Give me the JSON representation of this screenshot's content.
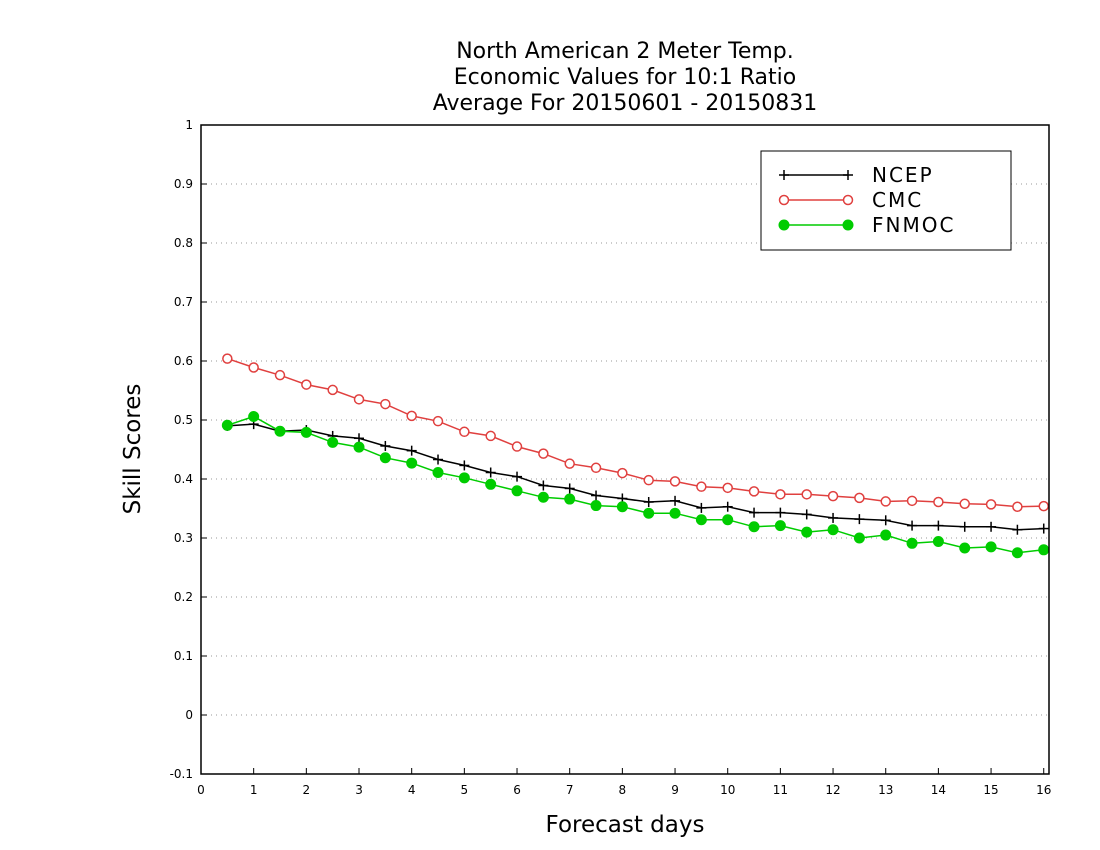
{
  "chart_data": {
    "type": "line",
    "title_lines": [
      "North American 2 Meter Temp.",
      "Economic Values for 10:1 Ratio",
      "Average For 20150601 - 20150831"
    ],
    "xlabel": "Forecast days",
    "ylabel": "Skill Scores",
    "xlim": [
      0,
      16.1
    ],
    "ylim": [
      -0.1,
      1
    ],
    "x_ticks": [
      0,
      1,
      2,
      3,
      4,
      5,
      6,
      7,
      8,
      9,
      10,
      11,
      12,
      13,
      14,
      15,
      16
    ],
    "y_ticks": [
      -0.1,
      0,
      0.1,
      0.2,
      0.3,
      0.4,
      0.5,
      0.6,
      0.7,
      0.8,
      0.9,
      1
    ],
    "y_tick_labels": [
      "-0.1",
      "0",
      "0.1",
      "0.2",
      "0.3",
      "0.4",
      "0.5",
      "0.6",
      "0.7",
      "0.8",
      "0.9",
      "1"
    ],
    "grid": "horizontal dotted",
    "legend_position": "top-right",
    "x": [
      0.5,
      1,
      1.5,
      2,
      2.5,
      3,
      3.5,
      4,
      4.5,
      5,
      5.5,
      6,
      6.5,
      7,
      7.5,
      8,
      8.5,
      9,
      9.5,
      10,
      10.5,
      11,
      11.5,
      12,
      12.5,
      13,
      13.5,
      14,
      14.5,
      15,
      15.5,
      16
    ],
    "series": [
      {
        "name": "NCEP",
        "color": "#000000",
        "marker": "plus",
        "values": [
          0.49,
          0.493,
          0.481,
          0.483,
          0.473,
          0.469,
          0.456,
          0.448,
          0.433,
          0.423,
          0.411,
          0.404,
          0.389,
          0.384,
          0.372,
          0.367,
          0.361,
          0.363,
          0.351,
          0.353,
          0.343,
          0.343,
          0.34,
          0.334,
          0.332,
          0.33,
          0.321,
          0.321,
          0.319,
          0.319,
          0.314,
          0.316
        ]
      },
      {
        "name": "CMC",
        "color": "#e0403f",
        "marker": "open-circle",
        "values": [
          0.604,
          0.589,
          0.576,
          0.56,
          0.551,
          0.535,
          0.527,
          0.507,
          0.498,
          0.48,
          0.473,
          0.455,
          0.443,
          0.426,
          0.419,
          0.41,
          0.398,
          0.396,
          0.387,
          0.385,
          0.379,
          0.374,
          0.374,
          0.371,
          0.368,
          0.362,
          0.363,
          0.361,
          0.358,
          0.357,
          0.353,
          0.354
        ]
      },
      {
        "name": "FNMOC",
        "color": "#00cc00",
        "marker": "filled-circle",
        "values": [
          0.491,
          0.506,
          0.481,
          0.479,
          0.462,
          0.454,
          0.436,
          0.427,
          0.411,
          0.402,
          0.391,
          0.38,
          0.369,
          0.366,
          0.355,
          0.353,
          0.342,
          0.342,
          0.331,
          0.331,
          0.319,
          0.321,
          0.31,
          0.314,
          0.3,
          0.305,
          0.291,
          0.294,
          0.283,
          0.285,
          0.275,
          0.28
        ]
      }
    ]
  }
}
